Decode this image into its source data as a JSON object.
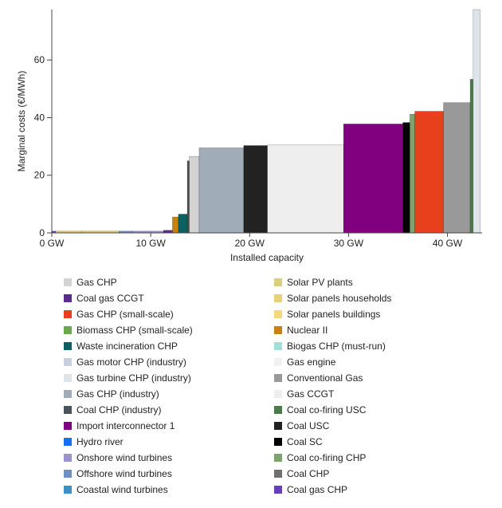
{
  "chart_data": {
    "type": "bar",
    "subtype": "merit-order-step",
    "xlabel": "Installed capacity",
    "ylabel": "Marginal costs (€/MWh)",
    "x_unit": "GW",
    "xlim": [
      0,
      43.5
    ],
    "ylim": [
      0,
      77.5
    ],
    "x_ticks": [
      0,
      10,
      20,
      30,
      40
    ],
    "x_tick_labels": [
      "0 GW",
      "10 GW",
      "20 GW",
      "30 GW",
      "40 GW"
    ],
    "y_ticks": [
      0,
      20,
      40,
      60
    ],
    "y_tick_labels": [
      "0",
      "20",
      "40",
      "60"
    ],
    "legend_position": "bottom",
    "segments": [
      {
        "start": 0.0,
        "end": 0.4,
        "value": 0.6,
        "color": "#6a3fbf"
      },
      {
        "start": 0.4,
        "end": 3.0,
        "value": 0.6,
        "color": "#e8d17a"
      },
      {
        "start": 3.0,
        "end": 6.8,
        "value": 0.6,
        "color": "#e6d27a"
      },
      {
        "start": 6.8,
        "end": 8.2,
        "value": 0.6,
        "color": "#6f8fc7"
      },
      {
        "start": 8.2,
        "end": 11.3,
        "value": 0.6,
        "color": "#9b93c9"
      },
      {
        "start": 11.3,
        "end": 12.2,
        "value": 0.9,
        "color": "#5a2d8a"
      },
      {
        "start": 12.2,
        "end": 12.8,
        "value": 5.5,
        "color": "#c8810c"
      },
      {
        "start": 12.8,
        "end": 13.7,
        "value": 6.5,
        "color": "#0d6060"
      },
      {
        "start": 13.7,
        "end": 13.9,
        "value": 25.0,
        "color": "#4c4c4c"
      },
      {
        "start": 13.9,
        "end": 14.9,
        "value": 26.5,
        "color": "#d3d3d3"
      },
      {
        "start": 14.9,
        "end": 19.4,
        "value": 29.5,
        "color": "#a0adb8"
      },
      {
        "start": 19.4,
        "end": 21.8,
        "value": 30.3,
        "color": "#222222"
      },
      {
        "start": 21.8,
        "end": 29.5,
        "value": 30.5,
        "color": "#eeeeee"
      },
      {
        "start": 29.5,
        "end": 35.5,
        "value": 37.8,
        "color": "#800080"
      },
      {
        "start": 35.5,
        "end": 36.2,
        "value": 38.3,
        "color": "#000000"
      },
      {
        "start": 36.2,
        "end": 36.7,
        "value": 41.2,
        "color": "#7ea36b"
      },
      {
        "start": 36.7,
        "end": 39.6,
        "value": 42.2,
        "color": "#e8401c"
      },
      {
        "start": 39.6,
        "end": 42.3,
        "value": 45.2,
        "color": "#999999"
      },
      {
        "start": 42.3,
        "end": 42.6,
        "value": 53.3,
        "color": "#4a7c4a"
      },
      {
        "start": 42.6,
        "end": 43.3,
        "value": 77.5,
        "color": "#dde4ea"
      }
    ]
  },
  "legend": {
    "left": [
      {
        "label": "Gas CHP",
        "color": "#d3d3d3"
      },
      {
        "label": "Coal gas CCGT",
        "color": "#5a2d8a"
      },
      {
        "label": "Gas CHP (small-scale)",
        "color": "#e8401c"
      },
      {
        "label": "Biomass CHP (small-scale)",
        "color": "#6aa84f"
      },
      {
        "label": "Waste incineration CHP",
        "color": "#0d6060"
      },
      {
        "label": "Gas motor CHP (industry)",
        "color": "#c7d0dc"
      },
      {
        "label": "Gas turbine CHP (industry)",
        "color": "#dde4ea"
      },
      {
        "label": "Gas CHP (industry)",
        "color": "#a0adb8"
      },
      {
        "label": "Coal CHP (industry)",
        "color": "#4a525a"
      },
      {
        "label": "Import interconnector 1",
        "color": "#800080"
      },
      {
        "label": "Hydro river",
        "color": "#1a6ff0"
      },
      {
        "label": "Onshore wind turbines",
        "color": "#9b93c9"
      },
      {
        "label": "Offshore wind turbines",
        "color": "#6f8fc7"
      },
      {
        "label": "Coastal wind turbines",
        "color": "#3d8fc4"
      }
    ],
    "right": [
      {
        "label": "Solar PV plants",
        "color": "#dccf7a"
      },
      {
        "label": "Solar panels households",
        "color": "#e6d27a"
      },
      {
        "label": "Solar panels buildings",
        "color": "#f2d97a"
      },
      {
        "label": "Nuclear II",
        "color": "#c8810c"
      },
      {
        "label": "Biogas CHP (must-run)",
        "color": "#9fe0d8"
      },
      {
        "label": "Gas engine",
        "color": "#f2f2f2"
      },
      {
        "label": "Conventional Gas",
        "color": "#999999"
      },
      {
        "label": "Gas CCGT",
        "color": "#eeeeee"
      },
      {
        "label": "Coal co-firing USC",
        "color": "#4a7c4a"
      },
      {
        "label": "Coal USC",
        "color": "#222222"
      },
      {
        "label": "Coal SC",
        "color": "#000000"
      },
      {
        "label": "Coal co-firing CHP",
        "color": "#7ea36b"
      },
      {
        "label": "Coal CHP",
        "color": "#707070"
      },
      {
        "label": "Coal gas CHP",
        "color": "#6a3fbf"
      }
    ]
  }
}
